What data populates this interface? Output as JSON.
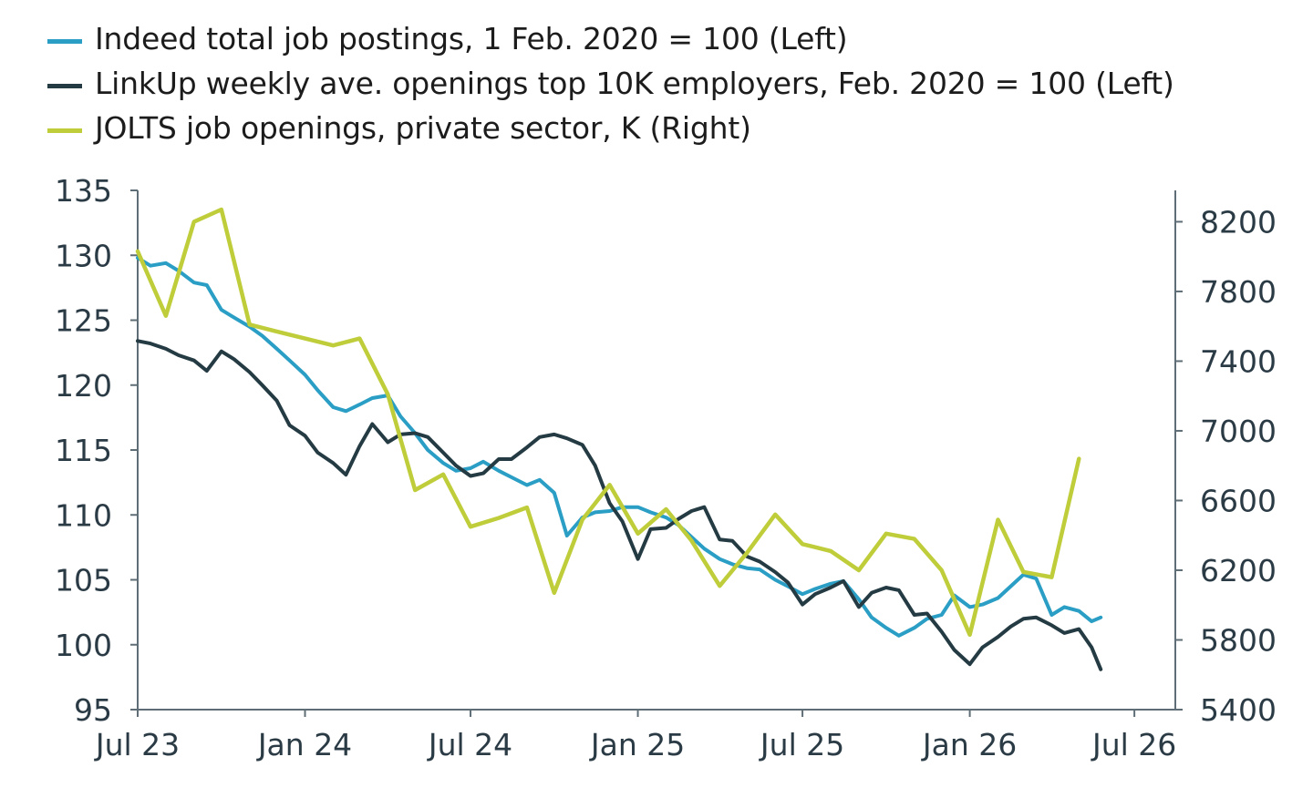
{
  "legend": {
    "items": [
      {
        "label": "Indeed total job postings, 1 Feb. 2020 = 100 (Left)",
        "color": "#2a9ec4"
      },
      {
        "label": "LinkUp weekly ave. openings top 10K employers, Feb. 2020 = 100 (Left)",
        "color": "#253b44"
      },
      {
        "label": "JOLTS job openings, private sector, K (Right)",
        "color": "#bfcd3a"
      }
    ]
  },
  "chart_data": {
    "type": "line",
    "x_ticks": [
      "Jul 23",
      "Jan 24",
      "Jul 24",
      "Jan 25",
      "Jul 25",
      "Jan 26",
      "Jul 26"
    ],
    "y_left_ticks": [
      "95",
      "100",
      "105",
      "110",
      "115",
      "120",
      "125",
      "130",
      "135"
    ],
    "y_right_ticks": [
      "5400",
      "5800",
      "6200",
      "6600",
      "7000",
      "7400",
      "7800",
      "8200"
    ],
    "ylim_left": [
      95,
      135
    ],
    "ylim_right": [
      5400,
      8380
    ],
    "xlim": [
      "2023-07-01",
      "2026-08-15"
    ],
    "grid": false,
    "legend_position": "top-left",
    "series": [
      {
        "name": "Indeed total job postings, 1 Feb. 2020 = 100 (Left)",
        "axis": "left",
        "color": "#2a9ec4",
        "points": [
          [
            "2023-07-01",
            129.8
          ],
          [
            "2023-07-15",
            129.2
          ],
          [
            "2023-08-01",
            129.4
          ],
          [
            "2023-08-15",
            128.8
          ],
          [
            "2023-09-01",
            127.9
          ],
          [
            "2023-09-15",
            127.7
          ],
          [
            "2023-10-01",
            125.8
          ],
          [
            "2023-10-15",
            125.2
          ],
          [
            "2023-11-01",
            124.5
          ],
          [
            "2023-11-15",
            123.8
          ],
          [
            "2023-12-01",
            122.8
          ],
          [
            "2023-12-15",
            121.9
          ],
          [
            "2024-01-01",
            120.8
          ],
          [
            "2024-01-15",
            119.6
          ],
          [
            "2024-02-01",
            118.3
          ],
          [
            "2024-02-15",
            118.0
          ],
          [
            "2024-03-01",
            118.5
          ],
          [
            "2024-03-15",
            119.0
          ],
          [
            "2024-04-01",
            119.2
          ],
          [
            "2024-04-15",
            117.6
          ],
          [
            "2024-05-01",
            116.3
          ],
          [
            "2024-05-15",
            115.0
          ],
          [
            "2024-06-01",
            114.0
          ],
          [
            "2024-06-15",
            113.4
          ],
          [
            "2024-07-01",
            113.6
          ],
          [
            "2024-07-15",
            114.1
          ],
          [
            "2024-08-01",
            113.4
          ],
          [
            "2024-08-15",
            112.9
          ],
          [
            "2024-09-01",
            112.3
          ],
          [
            "2024-09-15",
            112.7
          ],
          [
            "2024-10-01",
            111.7
          ],
          [
            "2024-10-15",
            108.4
          ],
          [
            "2024-11-01",
            109.8
          ],
          [
            "2024-11-15",
            110.2
          ],
          [
            "2024-12-01",
            110.3
          ],
          [
            "2024-12-15",
            110.6
          ],
          [
            "2025-01-01",
            110.6
          ],
          [
            "2025-01-15",
            110.2
          ],
          [
            "2025-02-01",
            109.8
          ],
          [
            "2025-02-15",
            109.2
          ],
          [
            "2025-03-01",
            108.3
          ],
          [
            "2025-03-15",
            107.4
          ],
          [
            "2025-04-01",
            106.6
          ],
          [
            "2025-04-15",
            106.2
          ],
          [
            "2025-05-01",
            105.9
          ],
          [
            "2025-05-15",
            105.8
          ],
          [
            "2025-06-01",
            105.0
          ],
          [
            "2025-06-15",
            104.5
          ],
          [
            "2025-07-01",
            103.9
          ],
          [
            "2025-07-15",
            104.3
          ],
          [
            "2025-08-01",
            104.7
          ],
          [
            "2025-08-15",
            104.9
          ],
          [
            "2025-09-01",
            103.5
          ],
          [
            "2025-09-15",
            102.1
          ],
          [
            "2025-10-01",
            101.3
          ],
          [
            "2025-10-15",
            100.7
          ],
          [
            "2025-11-01",
            101.3
          ],
          [
            "2025-11-15",
            102.0
          ],
          [
            "2025-12-01",
            102.3
          ],
          [
            "2025-12-15",
            103.8
          ],
          [
            "2026-01-01",
            102.9
          ],
          [
            "2026-01-15",
            103.1
          ],
          [
            "2026-02-01",
            103.6
          ],
          [
            "2026-02-15",
            104.5
          ],
          [
            "2026-03-01",
            105.4
          ],
          [
            "2026-03-15",
            105.1
          ],
          [
            "2026-04-01",
            102.3
          ],
          [
            "2026-04-15",
            102.9
          ],
          [
            "2026-05-01",
            102.6
          ],
          [
            "2026-05-15",
            101.8
          ],
          [
            "2026-05-25",
            102.1
          ]
        ]
      },
      {
        "name": "LinkUp weekly ave. openings top 10K employers, Feb. 2020 = 100 (Left)",
        "axis": "left",
        "color": "#253b44",
        "points": [
          [
            "2023-07-01",
            123.4
          ],
          [
            "2023-07-15",
            123.2
          ],
          [
            "2023-08-01",
            122.8
          ],
          [
            "2023-08-15",
            122.3
          ],
          [
            "2023-09-01",
            121.9
          ],
          [
            "2023-09-15",
            121.1
          ],
          [
            "2023-10-01",
            122.6
          ],
          [
            "2023-10-15",
            122.0
          ],
          [
            "2023-11-01",
            121.0
          ],
          [
            "2023-11-15",
            120.0
          ],
          [
            "2023-12-01",
            118.8
          ],
          [
            "2023-12-15",
            116.9
          ],
          [
            "2024-01-01",
            116.1
          ],
          [
            "2024-01-15",
            114.8
          ],
          [
            "2024-02-01",
            114.0
          ],
          [
            "2024-02-15",
            113.1
          ],
          [
            "2024-03-01",
            115.3
          ],
          [
            "2024-03-15",
            117.0
          ],
          [
            "2024-04-01",
            115.6
          ],
          [
            "2024-04-15",
            116.2
          ],
          [
            "2024-05-01",
            116.3
          ],
          [
            "2024-05-15",
            116.0
          ],
          [
            "2024-06-01",
            114.8
          ],
          [
            "2024-06-15",
            113.8
          ],
          [
            "2024-07-01",
            113.0
          ],
          [
            "2024-07-15",
            113.2
          ],
          [
            "2024-08-01",
            114.3
          ],
          [
            "2024-08-15",
            114.3
          ],
          [
            "2024-09-01",
            115.2
          ],
          [
            "2024-09-15",
            116.0
          ],
          [
            "2024-10-01",
            116.2
          ],
          [
            "2024-10-15",
            115.9
          ],
          [
            "2024-11-01",
            115.4
          ],
          [
            "2024-11-15",
            113.8
          ],
          [
            "2024-12-01",
            110.9
          ],
          [
            "2024-12-15",
            109.5
          ],
          [
            "2025-01-01",
            106.6
          ],
          [
            "2025-01-15",
            108.9
          ],
          [
            "2025-02-01",
            109.0
          ],
          [
            "2025-02-15",
            109.7
          ],
          [
            "2025-03-01",
            110.3
          ],
          [
            "2025-03-15",
            110.6
          ],
          [
            "2025-04-01",
            108.1
          ],
          [
            "2025-04-15",
            108.0
          ],
          [
            "2025-05-01",
            106.8
          ],
          [
            "2025-05-15",
            106.4
          ],
          [
            "2025-06-01",
            105.6
          ],
          [
            "2025-06-15",
            104.8
          ],
          [
            "2025-07-01",
            103.1
          ],
          [
            "2025-07-15",
            103.9
          ],
          [
            "2025-08-01",
            104.4
          ],
          [
            "2025-08-15",
            104.9
          ],
          [
            "2025-09-01",
            102.9
          ],
          [
            "2025-09-15",
            104.0
          ],
          [
            "2025-10-01",
            104.4
          ],
          [
            "2025-10-15",
            104.2
          ],
          [
            "2025-11-01",
            102.3
          ],
          [
            "2025-11-15",
            102.4
          ],
          [
            "2025-12-01",
            101.0
          ],
          [
            "2025-12-15",
            99.6
          ],
          [
            "2026-01-01",
            98.5
          ],
          [
            "2026-01-15",
            99.8
          ],
          [
            "2026-02-01",
            100.6
          ],
          [
            "2026-02-15",
            101.4
          ],
          [
            "2026-03-01",
            102.0
          ],
          [
            "2026-03-15",
            102.1
          ],
          [
            "2026-04-01",
            101.5
          ],
          [
            "2026-04-15",
            100.9
          ],
          [
            "2026-05-01",
            101.2
          ],
          [
            "2026-05-15",
            99.8
          ],
          [
            "2026-05-25",
            98.1
          ]
        ]
      },
      {
        "name": "JOLTS job openings, private sector, K (Right)",
        "axis": "right",
        "color": "#bfcd3a",
        "points": [
          [
            "2023-07-01",
            8030
          ],
          [
            "2023-08-01",
            7660
          ],
          [
            "2023-09-01",
            8200
          ],
          [
            "2023-10-01",
            8270
          ],
          [
            "2023-11-01",
            7610
          ],
          [
            "2023-12-01",
            7570
          ],
          [
            "2024-01-01",
            7530
          ],
          [
            "2024-02-01",
            7490
          ],
          [
            "2024-03-01",
            7530
          ],
          [
            "2024-04-01",
            7210
          ],
          [
            "2024-05-01",
            6660
          ],
          [
            "2024-06-01",
            6750
          ],
          [
            "2024-07-01",
            6450
          ],
          [
            "2024-08-01",
            6500
          ],
          [
            "2024-09-01",
            6560
          ],
          [
            "2024-10-01",
            6070
          ],
          [
            "2024-11-01",
            6490
          ],
          [
            "2024-12-01",
            6690
          ],
          [
            "2025-01-01",
            6410
          ],
          [
            "2025-02-01",
            6550
          ],
          [
            "2025-03-01",
            6370
          ],
          [
            "2025-04-01",
            6110
          ],
          [
            "2025-05-01",
            6300
          ],
          [
            "2025-06-01",
            6520
          ],
          [
            "2025-07-01",
            6350
          ],
          [
            "2025-08-01",
            6310
          ],
          [
            "2025-09-01",
            6200
          ],
          [
            "2025-10-01",
            6410
          ],
          [
            "2025-11-01",
            6380
          ],
          [
            "2025-12-01",
            6200
          ],
          [
            "2026-01-01",
            5830
          ],
          [
            "2026-02-01",
            6490
          ],
          [
            "2026-03-01",
            6190
          ],
          [
            "2026-04-01",
            6160
          ],
          [
            "2026-05-01",
            6840
          ]
        ]
      }
    ]
  }
}
